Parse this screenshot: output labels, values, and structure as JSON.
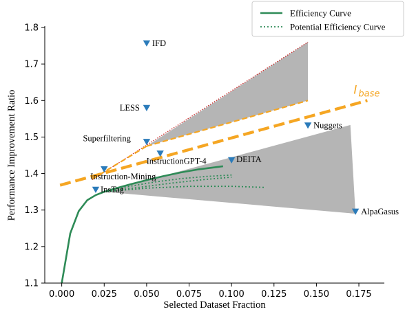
{
  "chart_data": {
    "type": "scatter",
    "xlabel": "Selected Dataset Fraction",
    "ylabel": "Performance Improvement Ratio",
    "xlim": [
      -0.01,
      0.19
    ],
    "ylim": [
      1.1,
      1.8
    ],
    "xticks": [
      "0.000",
      "0.025",
      "0.050",
      "0.075",
      "0.100",
      "0.125",
      "0.150",
      "0.175"
    ],
    "yticks": [
      "1.1",
      "1.2",
      "1.3",
      "1.4",
      "1.5",
      "1.6",
      "1.7",
      "1.8"
    ],
    "grid": false,
    "legend_position": "top-right",
    "legend": [
      {
        "label": "Efficiency Curve",
        "style": "solid",
        "color": "#2e8b57"
      },
      {
        "label": "Potential Efficiency Curve",
        "style": "dotted",
        "color": "#2e8b57"
      }
    ],
    "points": [
      {
        "name": "IFD",
        "x": 0.05,
        "y": 1.757
      },
      {
        "name": "LESS",
        "x": 0.05,
        "y": 1.58
      },
      {
        "name": "Superfiltering",
        "x": 0.05,
        "y": 1.487
      },
      {
        "name": "Nuggets",
        "x": 0.145,
        "y": 1.532
      },
      {
        "name": "InstructionGPT-4",
        "x": 0.058,
        "y": 1.455
      },
      {
        "name": "DEITA",
        "x": 0.1,
        "y": 1.437
      },
      {
        "name": "Instruction-Mining",
        "x": 0.025,
        "y": 1.412
      },
      {
        "name": "InsTag",
        "x": 0.02,
        "y": 1.356
      },
      {
        "name": "AlpaGasus",
        "x": 0.173,
        "y": 1.296
      }
    ],
    "baseline": {
      "label": "I",
      "label_sub": "base",
      "color": "#f5a623",
      "x": [
        -0.001,
        0.18
      ],
      "y": [
        1.368,
        1.6
      ]
    },
    "efficiency_curve": {
      "x": [
        0.0,
        0.005,
        0.01,
        0.015,
        0.02,
        0.025,
        0.03,
        0.04,
        0.05,
        0.06,
        0.07,
        0.08,
        0.09,
        0.095
      ],
      "y": [
        1.1,
        1.236,
        1.297,
        1.327,
        1.341,
        1.35,
        1.357,
        1.37,
        1.382,
        1.393,
        1.403,
        1.411,
        1.417,
        1.42
      ]
    },
    "potential_curves": [
      {
        "x": [
          0.025,
          0.04,
          0.055,
          0.07,
          0.085,
          0.1
        ],
        "y": [
          1.351,
          1.365,
          1.377,
          1.386,
          1.392,
          1.396
        ]
      },
      {
        "x": [
          0.025,
          0.045,
          0.065,
          0.085,
          0.1
        ],
        "y": [
          1.35,
          1.362,
          1.374,
          1.384,
          1.39
        ]
      },
      {
        "x": [
          0.025,
          0.05,
          0.075,
          0.1,
          0.12
        ],
        "y": [
          1.35,
          1.36,
          1.365,
          1.365,
          1.362
        ]
      }
    ],
    "regions": [
      {
        "name": "upper-shaded-region",
        "color": "#b5b5b5",
        "x": [
          0.05,
          0.145,
          0.145,
          0.05
        ],
        "y": [
          1.475,
          1.76,
          1.6,
          1.475
        ]
      },
      {
        "name": "lower-shaded-region",
        "color": "#b5b5b5",
        "x": [
          0.025,
          0.17,
          0.173,
          0.025
        ],
        "y": [
          1.35,
          1.533,
          1.29,
          1.35
        ]
      }
    ],
    "ref_lines": [
      {
        "name": "red-dotted-line",
        "color": "#cc2b2b",
        "style": "dotted",
        "x": [
          0.018,
          0.145
        ],
        "y": [
          1.383,
          1.76
        ]
      },
      {
        "name": "orange-upper-line",
        "color": "#f5a623",
        "style": "dashed",
        "x": [
          0.05,
          0.145
        ],
        "y": [
          1.475,
          1.6
        ]
      },
      {
        "name": "orange-lower-line",
        "color": "#f5a623",
        "style": "dashed",
        "x": [
          0.018,
          0.05
        ],
        "y": [
          1.385,
          1.475
        ]
      }
    ],
    "marker_color": "#2b7bba"
  }
}
